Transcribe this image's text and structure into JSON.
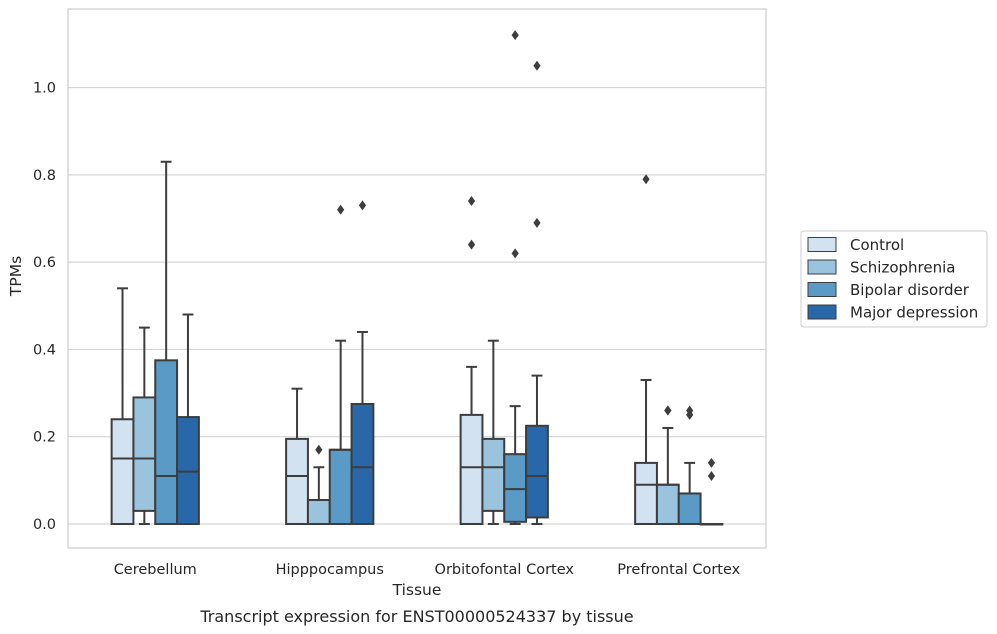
{
  "chart_data": {
    "type": "boxplot",
    "caption": "Transcript expression for ENST00000524337 by tissue",
    "xlabel": "Tissue",
    "ylabel": "TPMs",
    "ylim": [
      -0.055,
      1.18
    ],
    "yticks": [
      0.0,
      0.2,
      0.4,
      0.6,
      0.8,
      1.0
    ],
    "ytick_labels": [
      "0.0",
      "0.2",
      "0.4",
      "0.6",
      "0.8",
      "1.0"
    ],
    "grid": "horizontal",
    "legend_position": "right",
    "categories": [
      "Cerebellum",
      "Hipppocampus",
      "Orbitofontal Cortex",
      "Prefrontal Cortex"
    ],
    "series": [
      {
        "name": "Control",
        "color": "#d2e2f1",
        "boxes": [
          {
            "whislo": 0.0,
            "q1": 0.0,
            "med": 0.15,
            "q3": 0.24,
            "whishi": 0.54,
            "fliers": []
          },
          {
            "whislo": 0.0,
            "q1": 0.0,
            "med": 0.11,
            "q3": 0.195,
            "whishi": 0.31,
            "fliers": []
          },
          {
            "whislo": 0.0,
            "q1": 0.0,
            "med": 0.13,
            "q3": 0.25,
            "whishi": 0.36,
            "fliers": [
              0.64,
              0.74
            ]
          },
          {
            "whislo": 0.0,
            "q1": 0.0,
            "med": 0.09,
            "q3": 0.14,
            "whishi": 0.33,
            "fliers": [
              0.79
            ]
          }
        ]
      },
      {
        "name": "Schizophrenia",
        "color": "#9ac3dd",
        "boxes": [
          {
            "whislo": 0.0,
            "q1": 0.03,
            "med": 0.15,
            "q3": 0.29,
            "whishi": 0.45,
            "fliers": []
          },
          {
            "whislo": 0.0,
            "q1": 0.0,
            "med": 0.055,
            "q3": 0.055,
            "whishi": 0.13,
            "fliers": [
              0.17
            ]
          },
          {
            "whislo": 0.0,
            "q1": 0.03,
            "med": 0.13,
            "q3": 0.195,
            "whishi": 0.42,
            "fliers": []
          },
          {
            "whislo": 0.0,
            "q1": 0.0,
            "med": 0.09,
            "q3": 0.09,
            "whishi": 0.22,
            "fliers": [
              0.26,
              0.26
            ]
          }
        ]
      },
      {
        "name": "Bipolar disorder",
        "color": "#5a9ac6",
        "boxes": [
          {
            "whislo": 0.0,
            "q1": 0.0,
            "med": 0.11,
            "q3": 0.375,
            "whishi": 0.83,
            "fliers": []
          },
          {
            "whislo": 0.0,
            "q1": 0.0,
            "med": 0.17,
            "q3": 0.17,
            "whishi": 0.42,
            "fliers": [
              0.72
            ]
          },
          {
            "whislo": 0.0,
            "q1": 0.005,
            "med": 0.08,
            "q3": 0.16,
            "whishi": 0.27,
            "fliers": [
              0.62,
              1.12
            ]
          },
          {
            "whislo": 0.0,
            "q1": 0.0,
            "med": 0.07,
            "q3": 0.07,
            "whishi": 0.14,
            "fliers": [
              0.25,
              0.26
            ]
          }
        ]
      },
      {
        "name": "Major depression",
        "color": "#2867a8",
        "boxes": [
          {
            "whislo": 0.0,
            "q1": 0.0,
            "med": 0.12,
            "q3": 0.245,
            "whishi": 0.48,
            "fliers": []
          },
          {
            "whislo": 0.0,
            "q1": 0.0,
            "med": 0.13,
            "q3": 0.275,
            "whishi": 0.44,
            "fliers": [
              0.73
            ]
          },
          {
            "whislo": 0.0,
            "q1": 0.015,
            "med": 0.11,
            "q3": 0.225,
            "whishi": 0.34,
            "fliers": [
              0.69,
              1.05
            ]
          },
          {
            "whislo": 0.0,
            "q1": 0.0,
            "med": 0.0,
            "q3": 0.0,
            "whishi": 0.0,
            "fliers": [
              0.11,
              0.14
            ]
          }
        ]
      }
    ]
  }
}
